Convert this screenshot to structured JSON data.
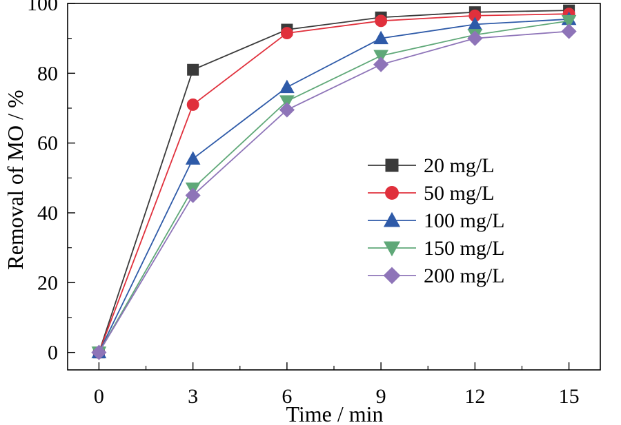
{
  "chart_data": {
    "type": "line",
    "title": "",
    "xlabel": "Time / min",
    "ylabel": "Removal of MO / %",
    "xlim": [
      -1,
      16
    ],
    "ylim": [
      -5,
      100
    ],
    "x": [
      0,
      3,
      6,
      9,
      12,
      15
    ],
    "x_ticks": [
      "0",
      "3",
      "6",
      "9",
      "12",
      "15"
    ],
    "y_ticks": [
      "0",
      "20",
      "40",
      "60",
      "80",
      "100"
    ],
    "grid": false,
    "legend_position": "center-right",
    "series": [
      {
        "name": "20 mg/L",
        "values": [
          0,
          81,
          92.5,
          96,
          97.5,
          98
        ],
        "color": "#3a3a3a",
        "marker": "square"
      },
      {
        "name": "50 mg/L",
        "values": [
          0,
          71,
          91.5,
          95,
          96.5,
          97
        ],
        "color": "#e0303c",
        "marker": "circle"
      },
      {
        "name": "100 mg/L",
        "values": [
          0,
          55.5,
          76,
          90,
          94,
          95.5
        ],
        "color": "#2e5aa8",
        "marker": "triangle-up"
      },
      {
        "name": "150 mg/L",
        "values": [
          0,
          47,
          72,
          85,
          91,
          95
        ],
        "color": "#5fa878",
        "marker": "triangle-down"
      },
      {
        "name": "200 mg/L",
        "values": [
          0,
          45,
          69.5,
          82.5,
          90,
          92
        ],
        "color": "#8e74b8",
        "marker": "diamond"
      }
    ]
  }
}
